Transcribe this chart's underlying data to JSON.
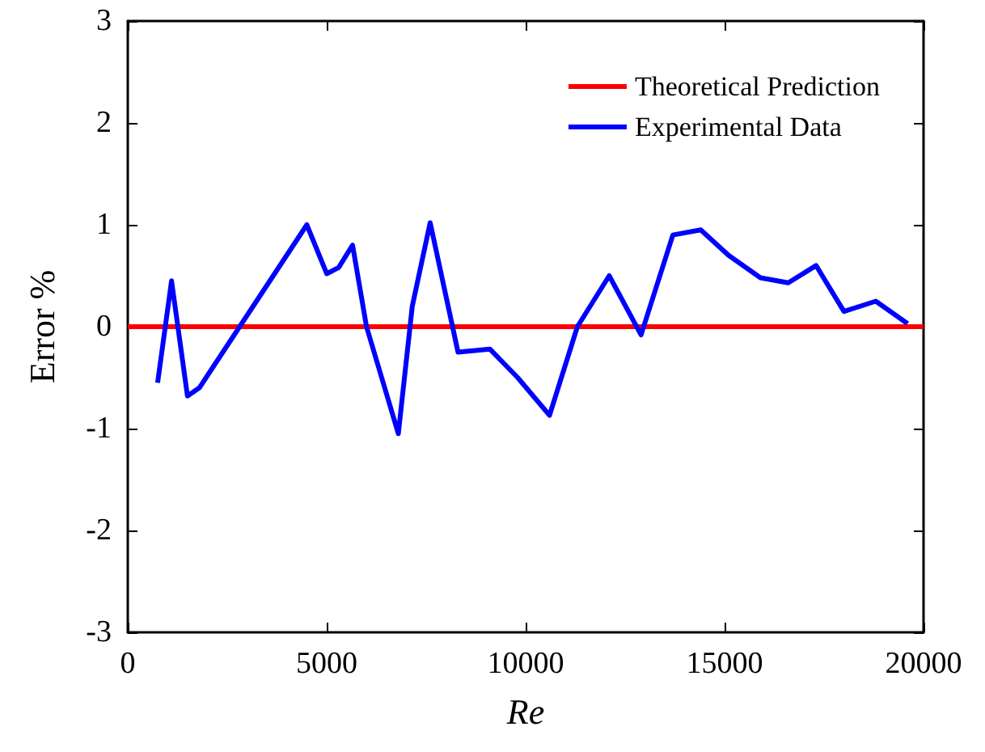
{
  "chart_data": {
    "type": "line",
    "xlabel": "Re",
    "ylabel": "Error %",
    "xlim": [
      0,
      20000
    ],
    "ylim": [
      -3,
      3
    ],
    "xticks": [
      0,
      5000,
      10000,
      15000,
      20000
    ],
    "yticks": [
      -3,
      -2,
      -1,
      0,
      1,
      2,
      3
    ],
    "grid": false,
    "legend": "top right",
    "marker": "none",
    "line_style": "solid",
    "series": [
      {
        "name": "Theoretical Prediction",
        "color": "#ff0000",
        "x": [
          0,
          20000
        ],
        "values": [
          0,
          0
        ]
      },
      {
        "name": "Experimental Data",
        "color": "#0000ff",
        "x": [
          750,
          1100,
          1500,
          1800,
          4500,
          5000,
          5300,
          5650,
          6000,
          6800,
          7150,
          7600,
          8300,
          9100,
          9800,
          10600,
          11300,
          12100,
          12900,
          13700,
          14400,
          15100,
          15900,
          16600,
          17300,
          18000,
          18800,
          19600
        ],
        "values": [
          -0.55,
          0.45,
          -0.68,
          -0.6,
          1.0,
          0.52,
          0.58,
          0.8,
          0,
          -1.05,
          0.2,
          1.02,
          -0.25,
          -0.22,
          -0.5,
          -0.87,
          0,
          0.5,
          -0.08,
          0.9,
          0.95,
          0.7,
          0.48,
          0.43,
          0.6,
          0.15,
          0.25,
          0.03
        ]
      }
    ]
  }
}
